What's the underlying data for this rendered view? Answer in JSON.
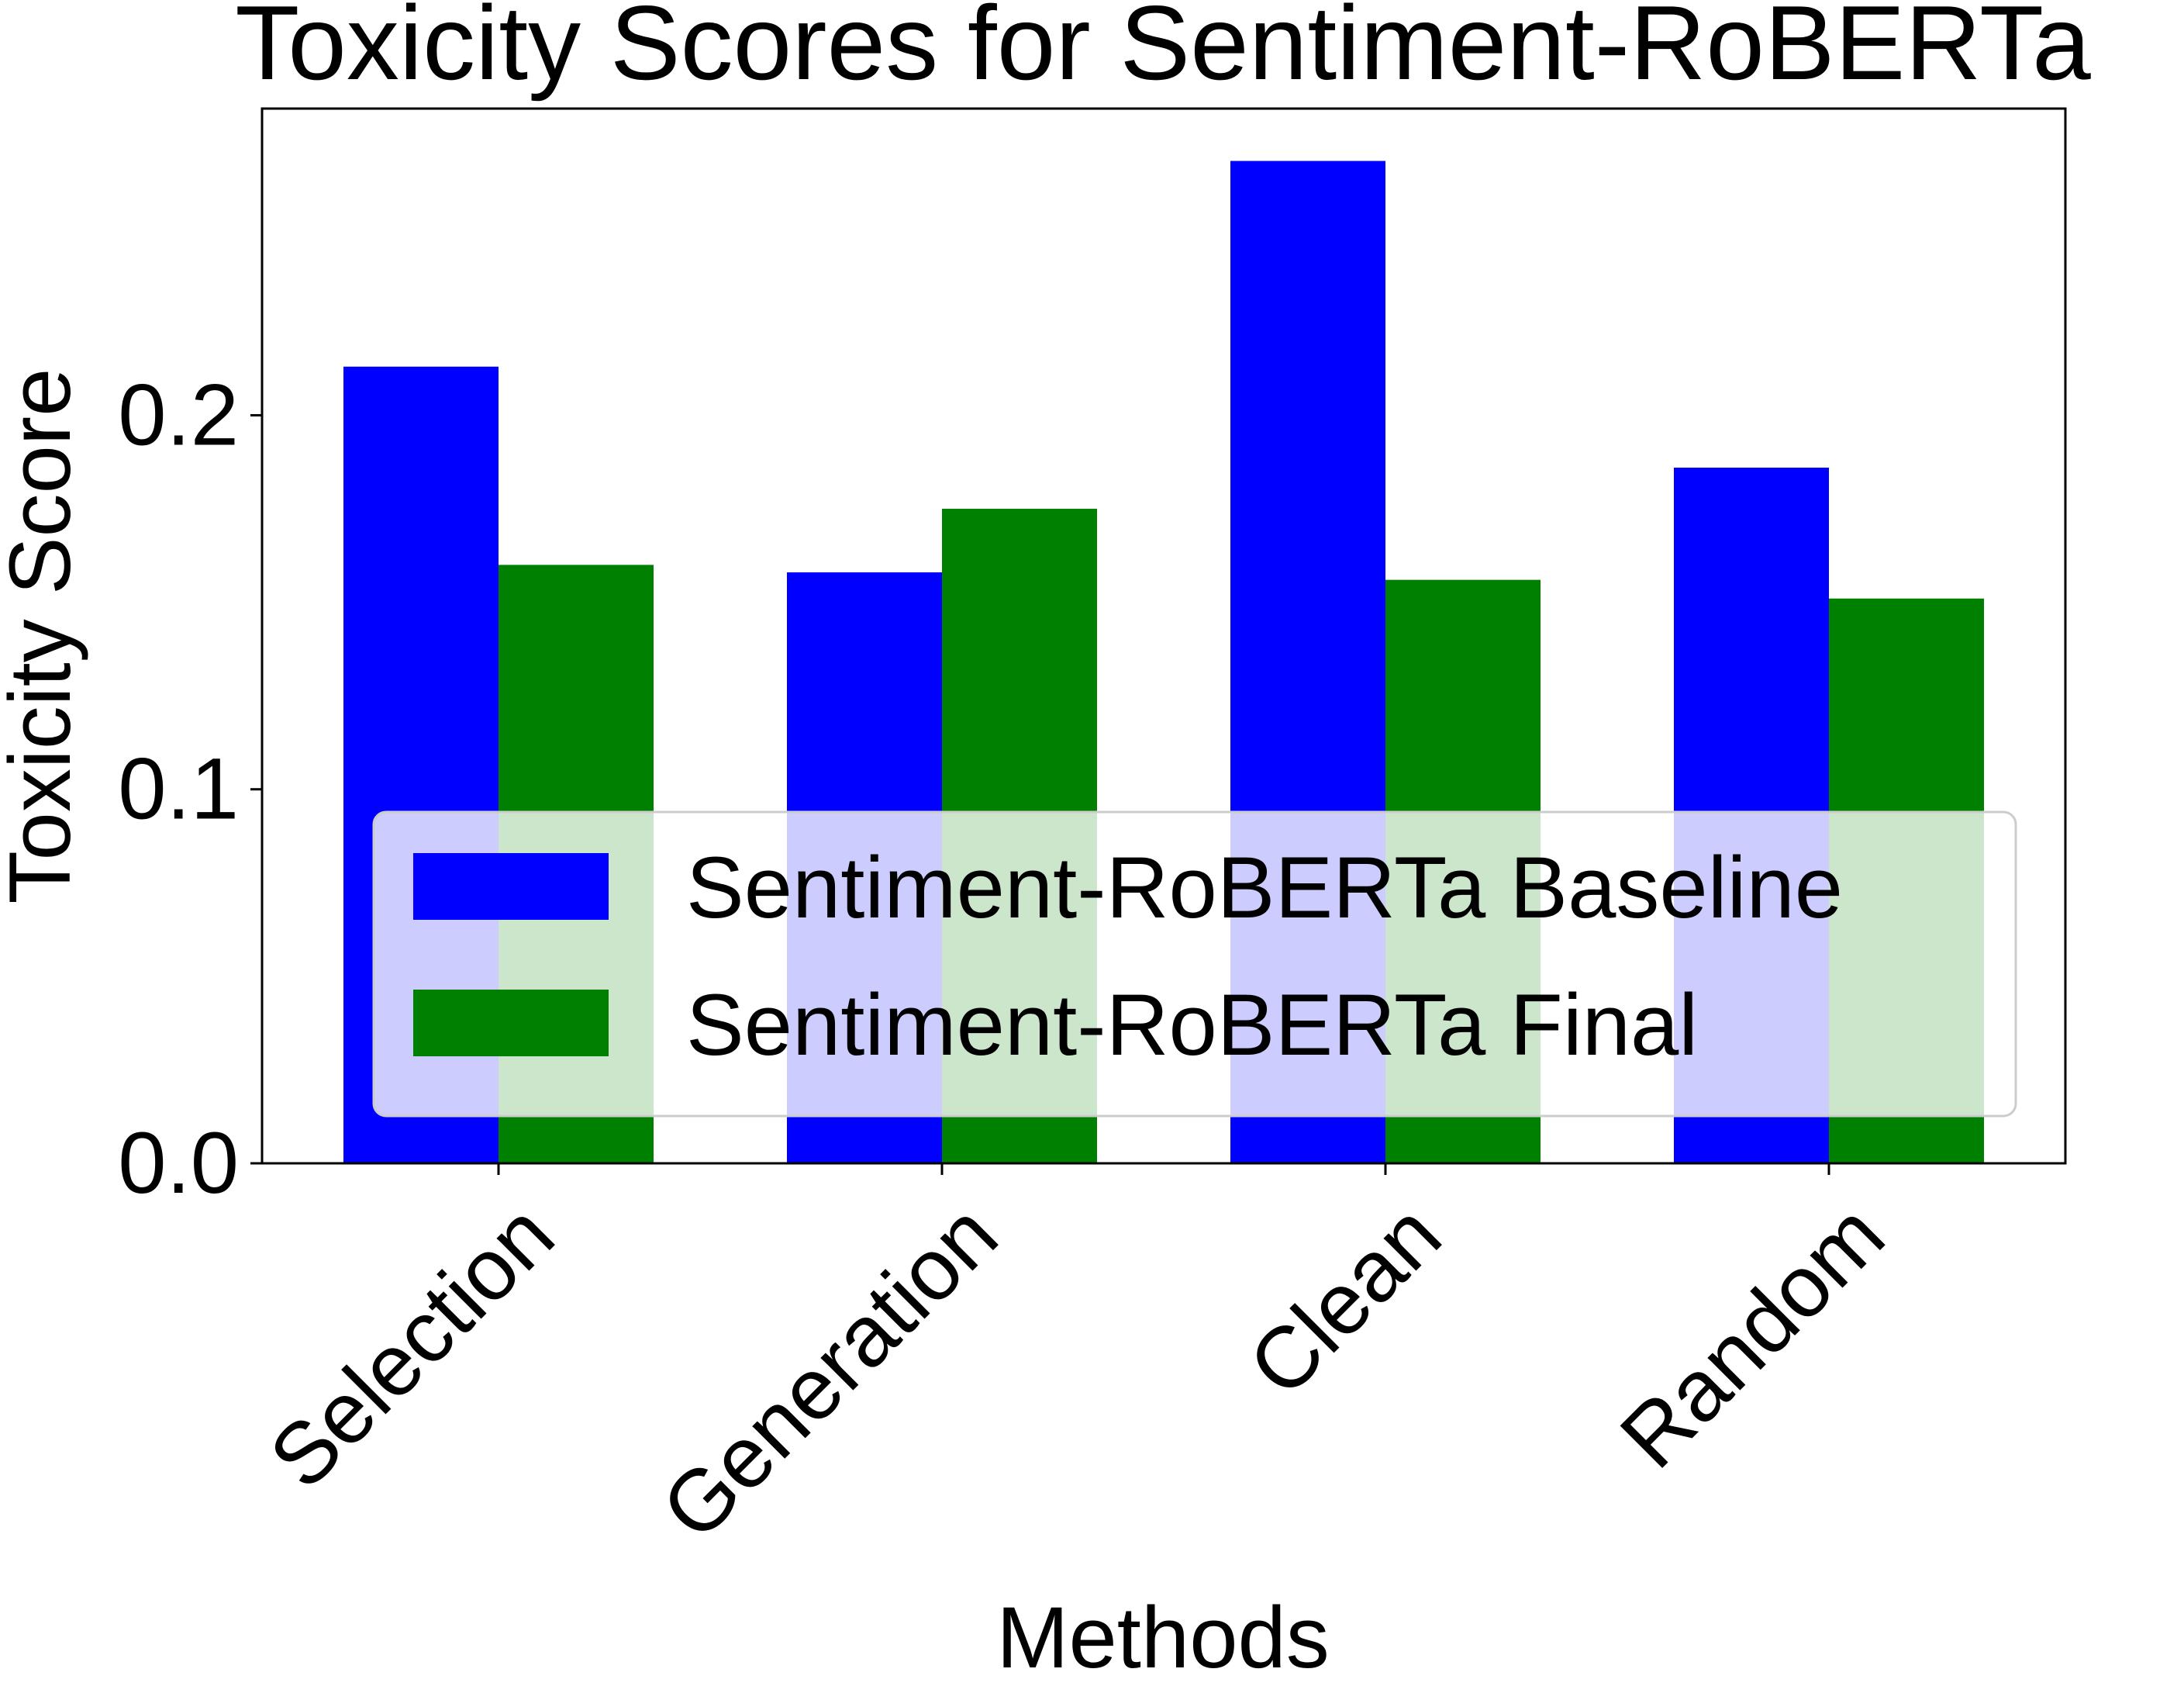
{
  "chart_data": {
    "type": "bar",
    "title": "Toxicity Scores for Sentiment-RoBERTa",
    "xlabel": "Methods",
    "ylabel": "Toxicity Score",
    "categories": [
      "Selection",
      "Generation",
      "Clean",
      "Random"
    ],
    "series": [
      {
        "name": "Sentiment-RoBERTa Baseline",
        "values": [
          0.213,
          0.158,
          0.268,
          0.186
        ],
        "color": "#0000ff"
      },
      {
        "name": "Sentiment-RoBERTa Final",
        "values": [
          0.16,
          0.175,
          0.156,
          0.151
        ],
        "color": "#008000"
      }
    ],
    "ylim": [
      0,
      0.282
    ],
    "yticks": [
      0.0,
      0.1,
      0.2
    ],
    "ytick_labels": [
      "0.0",
      "0.1",
      "0.2"
    ],
    "grid": false,
    "legend": "lower-center"
  }
}
